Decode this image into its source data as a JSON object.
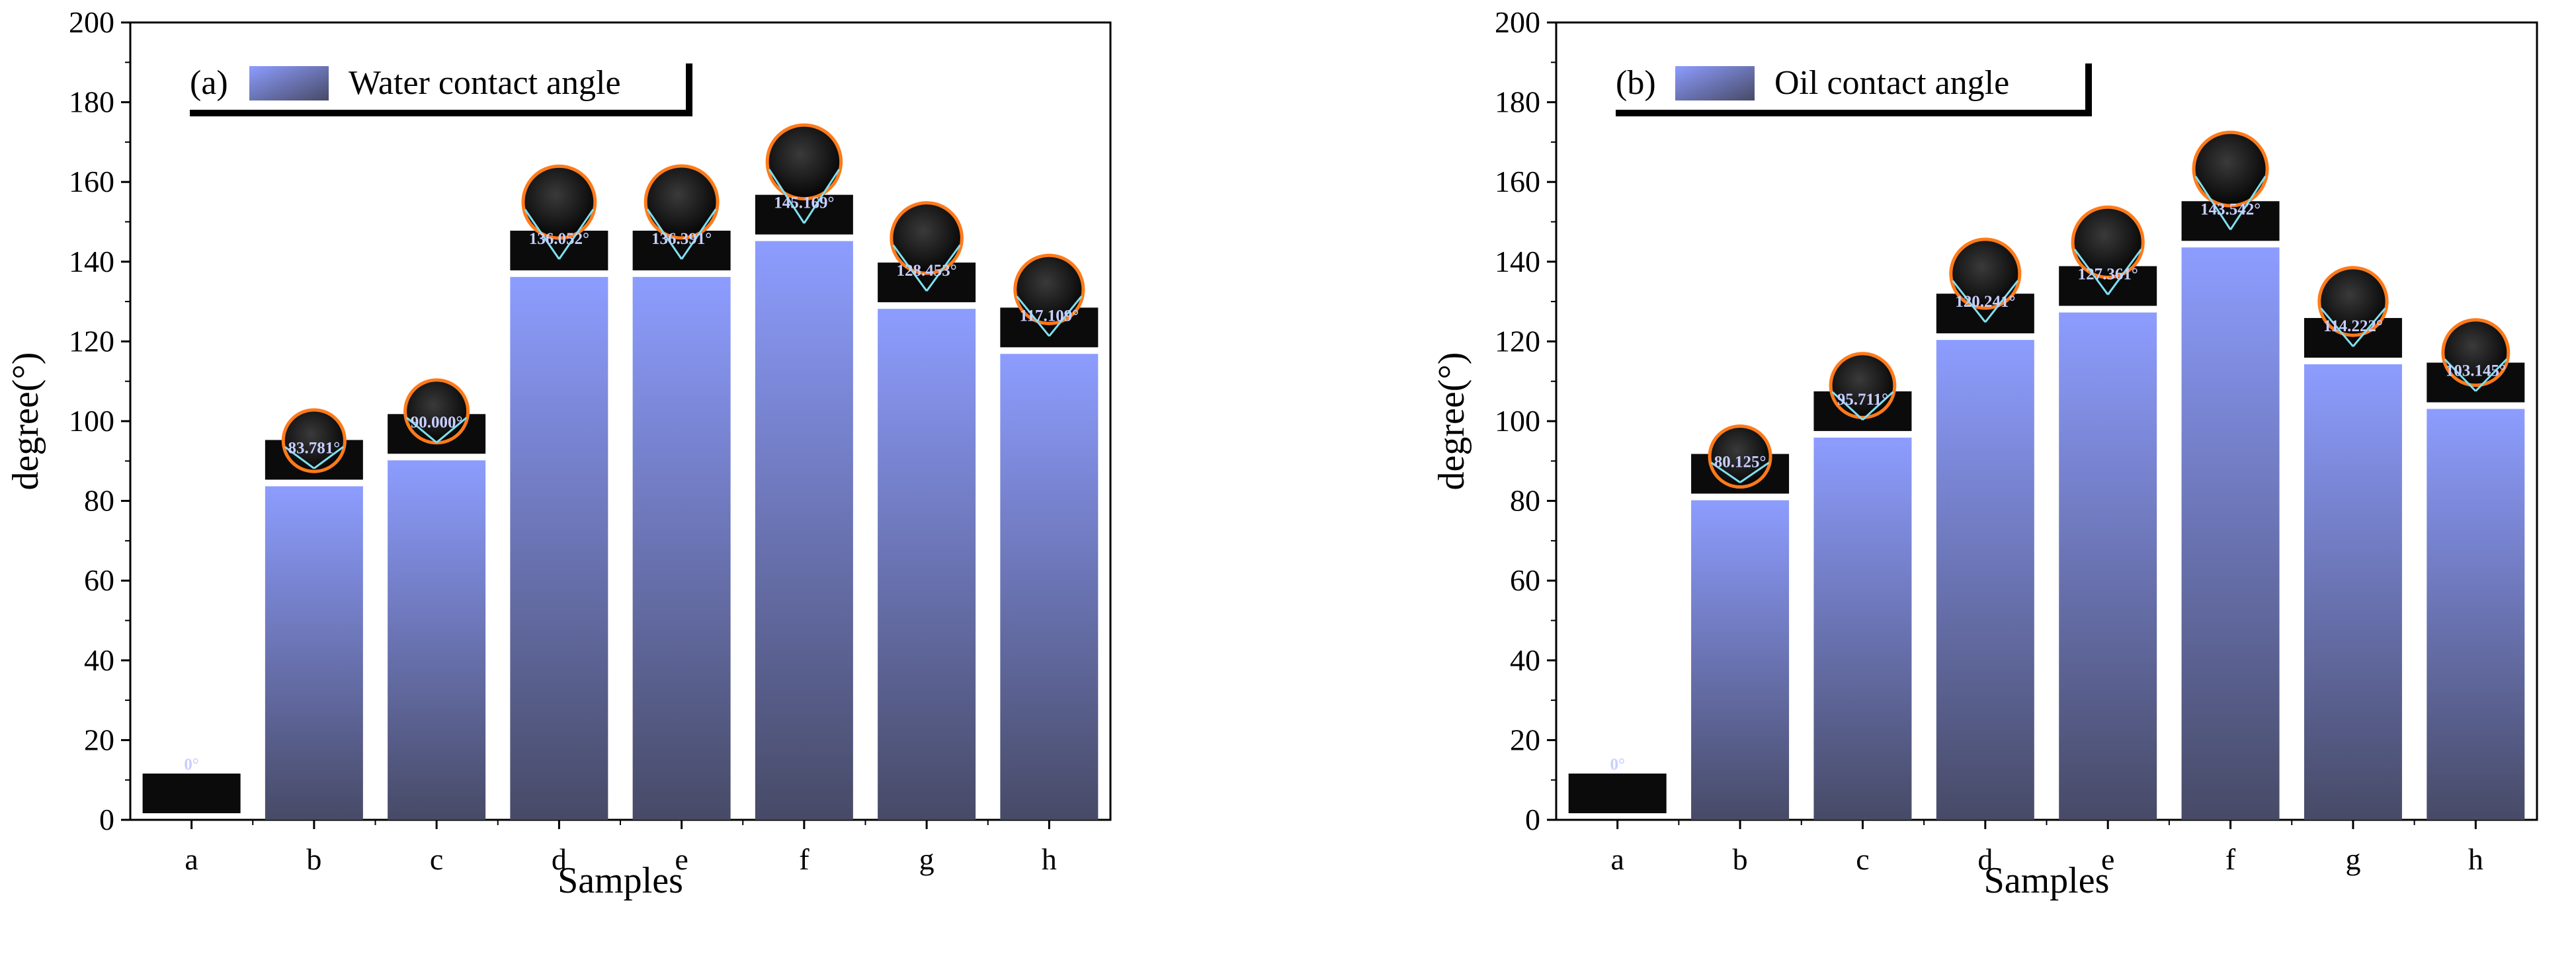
{
  "colors": {
    "bar_top": "#8d9dff",
    "bar_bottom": "#474a66",
    "axis": "#000000",
    "droplet_outline": "#ff7a1a",
    "tangent_lines": "#7fe0f0",
    "label_text": "#c8cfff",
    "image_background": "#0b0b0b"
  },
  "chart_data": [
    {
      "type": "bar",
      "panel_label": "(a)",
      "legend": "Water contact angle",
      "legend_position": "top-left",
      "xlabel": "Samples",
      "ylabel": "degree(°)",
      "ylim": [
        0,
        200
      ],
      "yticks": [
        0,
        20,
        40,
        60,
        80,
        100,
        120,
        140,
        160,
        180,
        200
      ],
      "grid": false,
      "categories": [
        "a",
        "b",
        "c",
        "d",
        "e",
        "f",
        "g",
        "h"
      ],
      "values": [
        0,
        84,
        90.5,
        136.5,
        136.5,
        145.5,
        128.5,
        117.2
      ],
      "droplet_image_labels": [
        "0°",
        "83.781°",
        "90.000°",
        "136.052°",
        "136.391°",
        "145.169°",
        "128.453°",
        "117.109°"
      ],
      "droplet_angles": [
        0,
        83.781,
        90.0,
        136.052,
        136.391,
        145.169,
        128.453,
        117.109
      ]
    },
    {
      "type": "bar",
      "panel_label": "(b)",
      "legend": "Oil contact angle",
      "legend_position": "top-left",
      "xlabel": "Samples",
      "ylabel": "degree(°)",
      "ylim": [
        0,
        200
      ],
      "yticks": [
        0,
        20,
        40,
        60,
        80,
        100,
        120,
        140,
        160,
        180,
        200
      ],
      "grid": false,
      "categories": [
        "a",
        "b",
        "c",
        "d",
        "e",
        "f",
        "g",
        "h"
      ],
      "values": [
        0,
        80.5,
        96.2,
        120.7,
        127.6,
        143.9,
        114.6,
        103.4
      ],
      "droplet_image_labels": [
        "0°",
        "80.125°",
        "95.711°",
        "120.241°",
        "127.361°",
        "143.542°",
        "114.222°",
        "103.145°"
      ],
      "droplet_angles": [
        0,
        80.125,
        95.711,
        120.241,
        127.361,
        143.542,
        114.222,
        103.145
      ]
    }
  ]
}
